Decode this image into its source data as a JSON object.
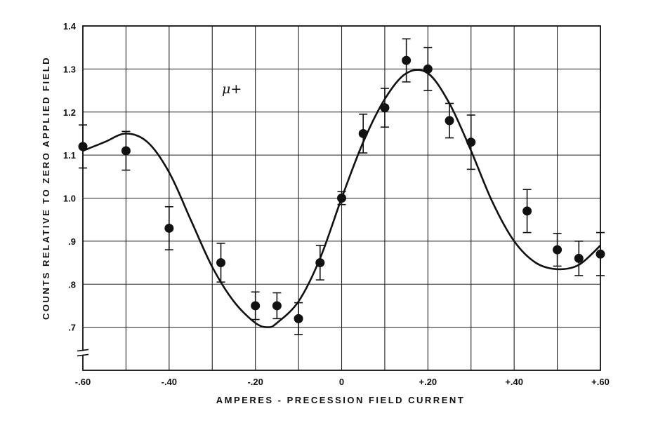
{
  "chart_data": {
    "type": "scatter",
    "xlabel": "AMPERES - PRECESSION FIELD CURRENT",
    "ylabel": "COUNTS RELATIVE TO ZERO APPLIED FIELD",
    "annotation": "μ+",
    "xlim": [
      -0.6,
      0.6
    ],
    "ylim": [
      0.6,
      1.4
    ],
    "x_ticks": [
      {
        "value": -0.6,
        "label": "-.60"
      },
      {
        "value": -0.4,
        "label": "-.40"
      },
      {
        "value": -0.2,
        "label": "-.20"
      },
      {
        "value": 0.0,
        "label": "0"
      },
      {
        "value": 0.2,
        "label": "+.20"
      },
      {
        "value": 0.4,
        "label": "+.40"
      },
      {
        "value": 0.6,
        "label": "+.60"
      }
    ],
    "y_ticks": [
      {
        "value": 0.7,
        "label": ".7"
      },
      {
        "value": 0.8,
        "label": ".8"
      },
      {
        "value": 0.9,
        "label": ".9"
      },
      {
        "value": 1.0,
        "label": "1.0"
      },
      {
        "value": 1.1,
        "label": "1.1"
      },
      {
        "value": 1.2,
        "label": "1.2"
      },
      {
        "value": 1.3,
        "label": "1.3"
      },
      {
        "value": 1.4,
        "label": "1.4"
      }
    ],
    "x_gridlines": [
      -0.5,
      -0.4,
      -0.3,
      -0.2,
      -0.1,
      0.0,
      0.1,
      0.2,
      0.3,
      0.4,
      0.5
    ],
    "y_gridlines": [
      0.7,
      0.8,
      0.9,
      1.0,
      1.1,
      1.2,
      1.3
    ],
    "grid": true,
    "axis_break": "y-axis broken below .7",
    "series": [
      {
        "kind": "points_with_error_bars",
        "points": [
          {
            "x": -0.6,
            "y": 1.12,
            "err": 0.05
          },
          {
            "x": -0.5,
            "y": 1.11,
            "err": 0.045
          },
          {
            "x": -0.4,
            "y": 0.93,
            "err": 0.05
          },
          {
            "x": -0.28,
            "y": 0.85,
            "err": 0.045
          },
          {
            "x": -0.2,
            "y": 0.75,
            "err": 0.032
          },
          {
            "x": -0.15,
            "y": 0.75,
            "err": 0.03
          },
          {
            "x": -0.1,
            "y": 0.72,
            "err": 0.037
          },
          {
            "x": -0.05,
            "y": 0.85,
            "err": 0.04
          },
          {
            "x": 0.0,
            "y": 1.0,
            "err": 0.015
          },
          {
            "x": 0.05,
            "y": 1.15,
            "err": 0.045
          },
          {
            "x": 0.1,
            "y": 1.21,
            "err": 0.045
          },
          {
            "x": 0.15,
            "y": 1.32,
            "err": 0.05
          },
          {
            "x": 0.2,
            "y": 1.3,
            "err": 0.05
          },
          {
            "x": 0.25,
            "y": 1.18,
            "err": 0.04
          },
          {
            "x": 0.3,
            "y": 1.13,
            "err": 0.063
          },
          {
            "x": 0.43,
            "y": 0.97,
            "err": 0.05
          },
          {
            "x": 0.5,
            "y": 0.88,
            "err": 0.038
          },
          {
            "x": 0.55,
            "y": 0.86,
            "err": 0.04
          },
          {
            "x": 0.6,
            "y": 0.87,
            "err": 0.05
          }
        ]
      },
      {
        "kind": "fit_curve",
        "x": [
          -0.6,
          -0.55,
          -0.5,
          -0.45,
          -0.4,
          -0.35,
          -0.3,
          -0.25,
          -0.2,
          -0.17,
          -0.15,
          -0.1,
          -0.05,
          0.0,
          0.05,
          0.1,
          0.15,
          0.2,
          0.25,
          0.3,
          0.35,
          0.4,
          0.45,
          0.5,
          0.55,
          0.6
        ],
        "y": [
          1.11,
          1.13,
          1.15,
          1.13,
          1.06,
          0.95,
          0.84,
          0.76,
          0.71,
          0.7,
          0.71,
          0.76,
          0.86,
          1.0,
          1.13,
          1.23,
          1.29,
          1.29,
          1.22,
          1.11,
          0.99,
          0.9,
          0.85,
          0.835,
          0.845,
          0.89
        ]
      }
    ]
  }
}
